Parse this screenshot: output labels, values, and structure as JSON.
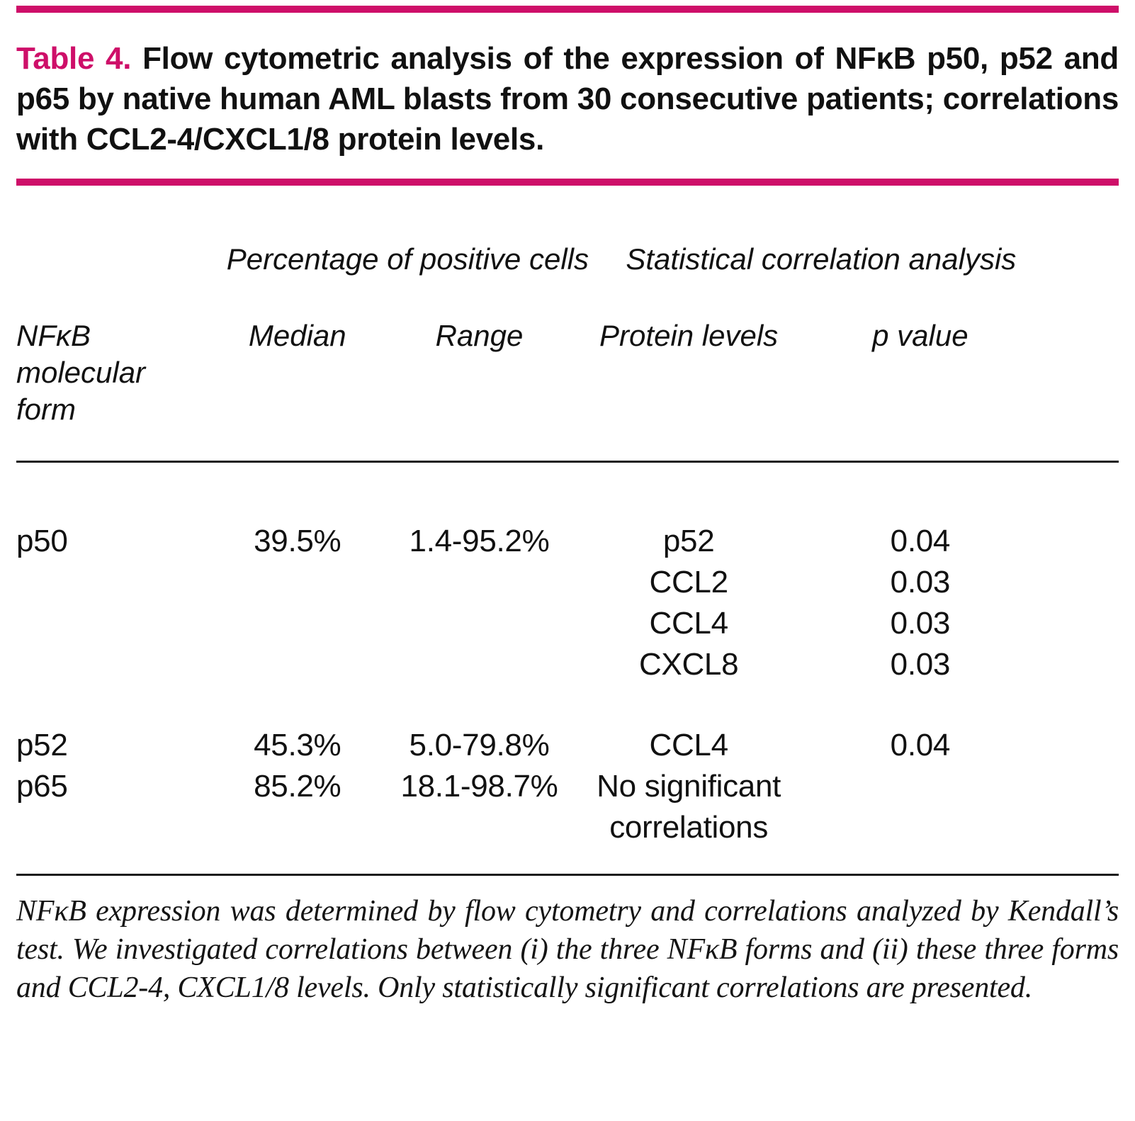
{
  "colors": {
    "accent": "#ce0f69",
    "rule": "#1a1a1a"
  },
  "title": {
    "label": "Table 4.",
    "text": "Flow cytometric analysis of the expression of NFκB p50, p52 and p65 by native human AML blasts from 30 consecutive patients; correlations with CCL2-4/CXCL1/8 protein levels."
  },
  "table": {
    "group_headers": [
      "Percentage of positive cells",
      "Statistical correlation analysis"
    ],
    "columns": [
      "NFκB molecular form",
      "Median",
      "Range",
      "Protein levels",
      "p value"
    ],
    "rows": [
      {
        "form": "p50",
        "median": "39.5%",
        "range": "1.4-95.2%",
        "correlations": [
          {
            "protein": "p52",
            "p": "0.04"
          },
          {
            "protein": "CCL2",
            "p": "0.03"
          },
          {
            "protein": "CCL4",
            "p": "0.03"
          },
          {
            "protein": "CXCL8",
            "p": "0.03"
          }
        ]
      },
      {
        "form": "p52",
        "median": "45.3%",
        "range": "5.0-79.8%",
        "correlations": [
          {
            "protein": "CCL4",
            "p": "0.04"
          }
        ]
      },
      {
        "form": "p65",
        "median": "85.2%",
        "range": "18.1-98.7%",
        "note": "No significant correlations"
      }
    ]
  },
  "footnote": "NFκB expression was determined by flow cytometry and correlations analyzed by Kendall’s test. We investigated correlations between (i) the three NFκB forms and (ii) these three forms and CCL2-4, CXCL1/8 levels. Only statistically significant correlations are presented."
}
